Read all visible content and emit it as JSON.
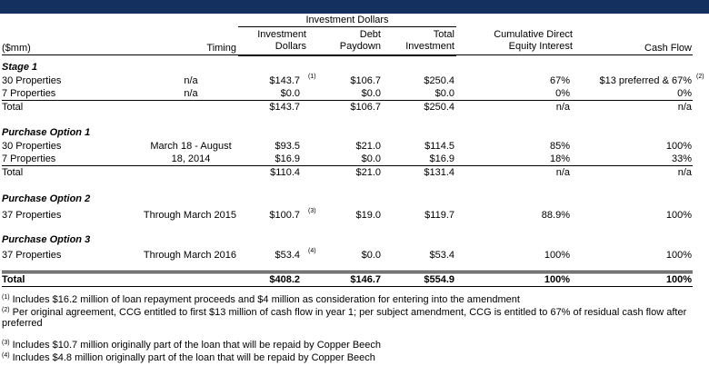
{
  "header": {
    "group_label": "Investment Dollars",
    "mm_label": "($mm)",
    "timing": "Timing",
    "inv1": "Investment",
    "inv2": "Dollars",
    "debt1": "Debt",
    "debt2": "Paydown",
    "tot1": "Total",
    "tot2": "Investment",
    "cde1": "Cumulative Direct",
    "cde2": "Equity Interest",
    "cash": "Cash Flow"
  },
  "stage1": {
    "title": "Stage 1",
    "rows": [
      {
        "name": "30 Properties",
        "timing": "n/a",
        "inv": "$143.7",
        "inv_note": "(1)",
        "debt": "$106.7",
        "tot": "$250.4",
        "cde": "67%",
        "cash": "$13 preferred & 67%",
        "cash_note": "(2)"
      },
      {
        "name": "7 Properties",
        "timing": "n/a",
        "inv": "$0.0",
        "debt": "$0.0",
        "tot": "$0.0",
        "cde": "0%",
        "cash": "0%"
      }
    ],
    "total": {
      "name": "Total",
      "inv": "$143.7",
      "debt": "$106.7",
      "tot": "$250.4",
      "cde": "n/a",
      "cash": "n/a"
    }
  },
  "po1": {
    "title": "Purchase Option 1",
    "timing1": "March 18 - August",
    "timing2": "18, 2014",
    "rows": [
      {
        "name": "30 Properties",
        "inv": "$93.5",
        "debt": "$21.0",
        "tot": "$114.5",
        "cde": "85%",
        "cash": "100%"
      },
      {
        "name": "7 Properties",
        "inv": "$16.9",
        "debt": "$0.0",
        "tot": "$16.9",
        "cde": "18%",
        "cash": "33%"
      }
    ],
    "total": {
      "name": "Total",
      "inv": "$110.4",
      "debt": "$21.0",
      "tot": "$131.4",
      "cde": "n/a",
      "cash": "n/a"
    }
  },
  "po2": {
    "title": "Purchase Option 2",
    "row": {
      "name": "37 Properties",
      "timing": "Through March 2015",
      "inv": "$100.7",
      "inv_note": "(3)",
      "debt": "$19.0",
      "tot": "$119.7",
      "cde": "88.9%",
      "cash": "100%"
    }
  },
  "po3": {
    "title": "Purchase Option 3",
    "row": {
      "name": "37 Properties",
      "timing": "Through March 2016",
      "inv": "$53.4",
      "inv_note": "(4)",
      "debt": "$0.0",
      "tot": "$53.4",
      "cde": "100%",
      "cash": "100%"
    }
  },
  "grand_total": {
    "name": "Total",
    "inv": "$408.2",
    "debt": "$146.7",
    "tot": "$554.9",
    "cde": "100%",
    "cash": "100%"
  },
  "footnotes": [
    {
      "mark": "(1)",
      "text": " Includes $16.2 million of loan repayment proceeds and $4 million as consideration for entering into the amendment"
    },
    {
      "mark": "(2)",
      "text": " Per original agreement, CCG entitled to first $13 million of cash flow in year 1; per subject amendment, CCG is entitled to 67% of residual cash flow after preferred"
    },
    {
      "mark": "(3)",
      "text": " Includes $10.7 million originally part of the loan that will be repaid by Copper Beech"
    },
    {
      "mark": "(4)",
      "text": " Includes $4.8 million originally part of the loan that will be repaid by Copper Beech"
    }
  ]
}
